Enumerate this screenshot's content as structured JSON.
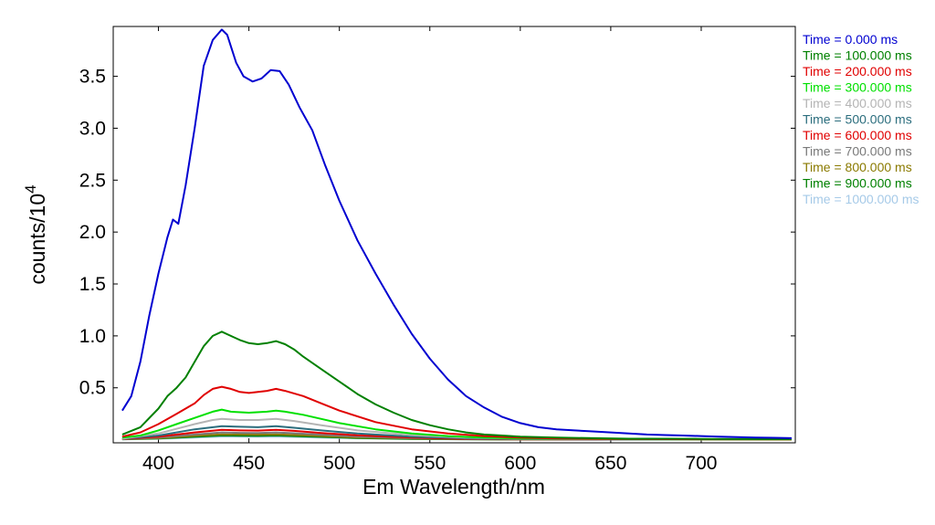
{
  "chart_data": {
    "type": "line",
    "xlabel": "Em Wavelength/nm",
    "ylabel_base": "counts/10",
    "ylabel_exp": "4",
    "xlim": [
      375,
      752
    ],
    "ylim": [
      -0.03,
      3.98
    ],
    "x_ticks": [
      400,
      450,
      500,
      550,
      600,
      650,
      700
    ],
    "y_ticks": [
      0.5,
      1.0,
      1.5,
      2.0,
      2.5,
      3.0,
      3.5
    ],
    "legend_position": "top-right, outside plot",
    "series": [
      {
        "name": "Time = 0.000 ms",
        "color": "#0000d0",
        "x": [
          380,
          385,
          390,
          395,
          400,
          405,
          408,
          411,
          415,
          420,
          425,
          430,
          435,
          438,
          443,
          447,
          452,
          457,
          462,
          467,
          472,
          478,
          485,
          492,
          500,
          510,
          520,
          530,
          540,
          550,
          560,
          570,
          580,
          590,
          600,
          610,
          620,
          630,
          640,
          650,
          660,
          670,
          680,
          690,
          700,
          710,
          720,
          730,
          740,
          750
        ],
        "y": [
          0.28,
          0.42,
          0.75,
          1.2,
          1.6,
          1.95,
          2.12,
          2.08,
          2.45,
          3.0,
          3.6,
          3.85,
          3.95,
          3.9,
          3.63,
          3.5,
          3.45,
          3.48,
          3.56,
          3.55,
          3.42,
          3.2,
          2.98,
          2.65,
          2.3,
          1.92,
          1.6,
          1.3,
          1.02,
          0.78,
          0.58,
          0.42,
          0.31,
          0.22,
          0.16,
          0.12,
          0.1,
          0.09,
          0.08,
          0.07,
          0.06,
          0.05,
          0.045,
          0.04,
          0.035,
          0.03,
          0.025,
          0.02,
          0.018,
          0.015
        ]
      },
      {
        "name": "Time = 100.000 ms",
        "color": "#008000",
        "x": [
          380,
          390,
          400,
          405,
          410,
          415,
          420,
          425,
          430,
          435,
          440,
          445,
          450,
          455,
          460,
          465,
          470,
          475,
          480,
          490,
          500,
          510,
          520,
          530,
          540,
          550,
          560,
          570,
          580,
          590,
          600,
          620,
          640,
          660,
          680,
          700,
          720,
          740,
          750
        ],
        "y": [
          0.05,
          0.12,
          0.3,
          0.42,
          0.5,
          0.6,
          0.75,
          0.9,
          1.0,
          1.04,
          1.0,
          0.96,
          0.93,
          0.92,
          0.93,
          0.95,
          0.92,
          0.87,
          0.8,
          0.68,
          0.56,
          0.44,
          0.34,
          0.26,
          0.19,
          0.14,
          0.1,
          0.07,
          0.05,
          0.04,
          0.03,
          0.02,
          0.015,
          0.01,
          0.01,
          0.008,
          0.006,
          0.005,
          0.005
        ]
      },
      {
        "name": "Time = 200.000 ms",
        "color": "#e00000",
        "x": [
          380,
          390,
          400,
          410,
          420,
          425,
          430,
          435,
          440,
          445,
          450,
          455,
          460,
          465,
          470,
          480,
          490,
          500,
          520,
          540,
          560,
          580,
          600,
          620,
          650,
          700,
          750
        ],
        "y": [
          0.03,
          0.07,
          0.15,
          0.25,
          0.35,
          0.43,
          0.49,
          0.51,
          0.49,
          0.46,
          0.45,
          0.46,
          0.47,
          0.49,
          0.47,
          0.42,
          0.35,
          0.28,
          0.17,
          0.1,
          0.06,
          0.035,
          0.02,
          0.012,
          0.007,
          0.004,
          0.003
        ]
      },
      {
        "name": "Time = 300.000 ms",
        "color": "#00e000",
        "x": [
          380,
          390,
          400,
          410,
          420,
          430,
          435,
          440,
          450,
          460,
          465,
          470,
          480,
          490,
          500,
          520,
          540,
          560,
          580,
          600,
          650,
          700,
          750
        ],
        "y": [
          0.02,
          0.04,
          0.09,
          0.15,
          0.21,
          0.27,
          0.29,
          0.27,
          0.26,
          0.27,
          0.28,
          0.27,
          0.24,
          0.2,
          0.16,
          0.1,
          0.06,
          0.035,
          0.02,
          0.012,
          0.005,
          0.003,
          0.002
        ]
      },
      {
        "name": "Time = 400.000 ms",
        "color": "#b4b4b4",
        "x": [
          380,
          400,
          420,
          430,
          435,
          445,
          455,
          465,
          475,
          490,
          510,
          540,
          570,
          600,
          650,
          700,
          750
        ],
        "y": [
          0.01,
          0.06,
          0.15,
          0.19,
          0.2,
          0.19,
          0.19,
          0.2,
          0.18,
          0.14,
          0.09,
          0.045,
          0.02,
          0.01,
          0.004,
          0.002,
          0.001
        ]
      },
      {
        "name": "Time = 500.000 ms",
        "color": "#2c6e7e",
        "x": [
          380,
          400,
          420,
          435,
          445,
          455,
          465,
          475,
          490,
          510,
          540,
          570,
          600,
          650,
          750
        ],
        "y": [
          0.01,
          0.04,
          0.1,
          0.13,
          0.125,
          0.12,
          0.13,
          0.115,
          0.09,
          0.06,
          0.03,
          0.013,
          0.006,
          0.002,
          0.001
        ]
      },
      {
        "name": "Time = 600.000 ms",
        "color": "#e00000",
        "x": [
          380,
          400,
          420,
          435,
          445,
          455,
          465,
          475,
          490,
          510,
          540,
          570,
          600,
          650,
          750
        ],
        "y": [
          0.008,
          0.03,
          0.07,
          0.095,
          0.09,
          0.088,
          0.095,
          0.085,
          0.065,
          0.042,
          0.02,
          0.009,
          0.004,
          0.002,
          0.001
        ]
      },
      {
        "name": "Time = 700.000 ms",
        "color": "#7a7a7a",
        "x": [
          380,
          400,
          420,
          435,
          445,
          455,
          465,
          475,
          490,
          510,
          540,
          570,
          600,
          650,
          750
        ],
        "y": [
          0.006,
          0.02,
          0.05,
          0.07,
          0.066,
          0.065,
          0.07,
          0.062,
          0.048,
          0.03,
          0.015,
          0.007,
          0.003,
          0.001,
          0.001
        ]
      },
      {
        "name": "Time = 800.000 ms",
        "color": "#8a7a00",
        "x": [
          380,
          400,
          420,
          435,
          445,
          455,
          465,
          475,
          490,
          510,
          540,
          570,
          600,
          650,
          750
        ],
        "y": [
          0.005,
          0.015,
          0.038,
          0.052,
          0.05,
          0.049,
          0.052,
          0.046,
          0.036,
          0.022,
          0.011,
          0.005,
          0.002,
          0.001,
          0.001
        ]
      },
      {
        "name": "Time = 900.000 ms",
        "color": "#008000",
        "x": [
          380,
          400,
          420,
          435,
          445,
          455,
          465,
          475,
          490,
          510,
          540,
          570,
          600,
          650,
          750
        ],
        "y": [
          0.004,
          0.012,
          0.028,
          0.04,
          0.038,
          0.037,
          0.04,
          0.035,
          0.027,
          0.017,
          0.008,
          0.004,
          0.002,
          0.001,
          0.001
        ]
      },
      {
        "name": "Time = 1000.000 ms",
        "color": "#a6cae8",
        "x": [
          380,
          400,
          420,
          435,
          445,
          455,
          465,
          475,
          490,
          510,
          540,
          570,
          600,
          650,
          750
        ],
        "y": [
          0.003,
          0.009,
          0.021,
          0.03,
          0.029,
          0.028,
          0.03,
          0.026,
          0.02,
          0.013,
          0.006,
          0.003,
          0.001,
          0.001,
          0.001
        ]
      }
    ]
  }
}
